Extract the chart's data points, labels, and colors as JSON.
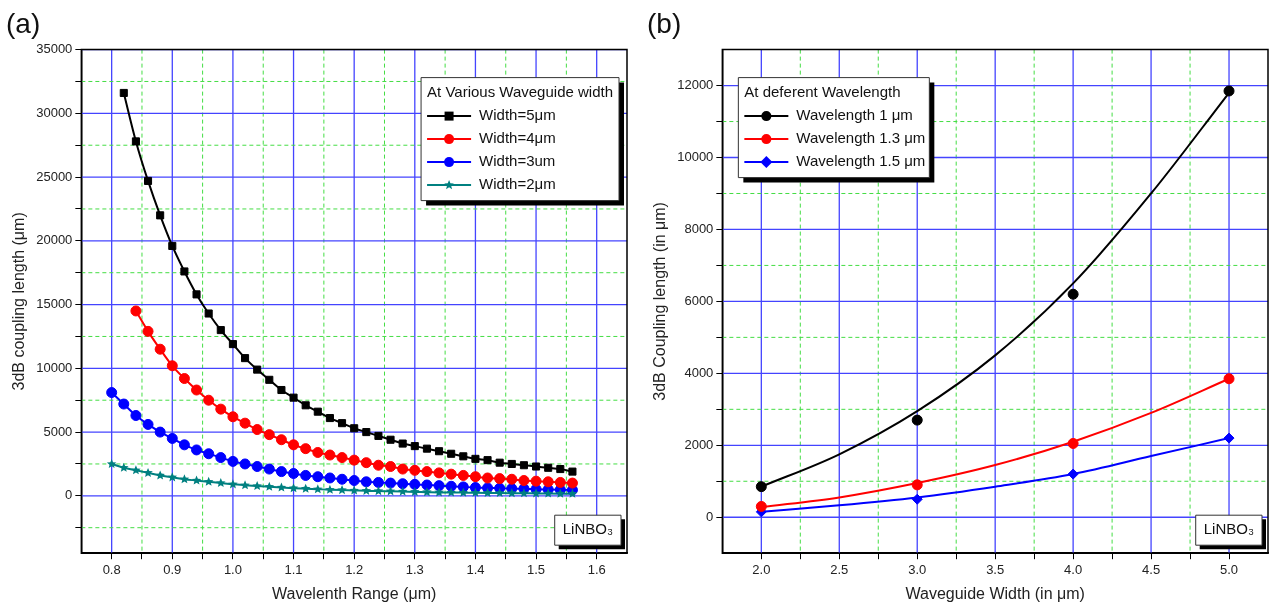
{
  "chart_data": [
    {
      "type": "line",
      "title": "(a)",
      "xlabel": "Wavelenth Range (μm)",
      "ylabel": "3dB coupling length (μm)",
      "legend_title": "At Various Waveguide width",
      "legend": "top right",
      "grid": true,
      "xlim": [
        0.75,
        1.65
      ],
      "xticks": [
        0.8,
        {
          "value": 0.85,
          "label": null
        },
        0.9,
        {
          "value": 0.95,
          "label": null
        },
        {
          "value": 1,
          "label": "1.0"
        },
        {
          "value": 1.05,
          "label": null
        },
        1.1,
        {
          "value": 1.15,
          "label": null
        },
        1.2,
        {
          "value": 1.25,
          "label": null
        },
        1.3,
        {
          "value": 1.35,
          "label": null
        },
        1.4,
        {
          "value": 1.45,
          "label": null
        },
        1.5,
        {
          "value": 1.55,
          "label": null
        },
        1.6
      ],
      "ylim": [
        -4500,
        35000
      ],
      "yticks": [
        {
          "value": -2500,
          "label": null
        },
        0,
        {
          "value": 2500,
          "label": null
        },
        5000,
        {
          "value": 7500,
          "label": null
        },
        10000,
        {
          "value": 12500,
          "label": null
        },
        15000,
        {
          "value": 17500,
          "label": null
        },
        20000,
        {
          "value": 22500,
          "label": null
        },
        25000,
        {
          "value": 27500,
          "label": null
        },
        30000,
        {
          "value": 32500,
          "label": null
        },
        35000
      ],
      "annotations": [
        "LiNBO₃"
      ],
      "series": [
        {
          "name": "Width=5μm",
          "color": "#000000",
          "marker": "square",
          "x": [
            0.82,
            0.84,
            0.86,
            0.88,
            0.9,
            0.92,
            0.94,
            0.96,
            0.98,
            1.0,
            1.02,
            1.04,
            1.06,
            1.08,
            1.1,
            1.12,
            1.14,
            1.16,
            1.18,
            1.2,
            1.22,
            1.24,
            1.26,
            1.28,
            1.3,
            1.32,
            1.34,
            1.36,
            1.38,
            1.4,
            1.42,
            1.44,
            1.46,
            1.48,
            1.5,
            1.52,
            1.54,
            1.56
          ],
          "values": [
            31600,
            27800,
            24700,
            22000,
            19600,
            17600,
            15800,
            14300,
            13000,
            11900,
            10800,
            9900,
            9100,
            8300,
            7700,
            7100,
            6600,
            6100,
            5700,
            5300,
            5000,
            4700,
            4400,
            4100,
            3900,
            3700,
            3500,
            3300,
            3100,
            2900,
            2800,
            2600,
            2500,
            2400,
            2300,
            2200,
            2100,
            1900
          ]
        },
        {
          "name": "Width=4μm",
          "color": "#ff0000",
          "marker": "circle",
          "x": [
            0.84,
            0.86,
            0.88,
            0.9,
            0.92,
            0.94,
            0.96,
            0.98,
            1.0,
            1.02,
            1.04,
            1.06,
            1.08,
            1.1,
            1.12,
            1.14,
            1.16,
            1.18,
            1.2,
            1.22,
            1.24,
            1.26,
            1.28,
            1.3,
            1.32,
            1.34,
            1.36,
            1.38,
            1.4,
            1.42,
            1.44,
            1.46,
            1.48,
            1.5,
            1.52,
            1.54,
            1.56
          ],
          "values": [
            14500,
            12900,
            11500,
            10200,
            9200,
            8300,
            7500,
            6800,
            6200,
            5700,
            5200,
            4800,
            4400,
            4000,
            3700,
            3400,
            3200,
            3000,
            2800,
            2600,
            2400,
            2300,
            2100,
            2000,
            1900,
            1800,
            1700,
            1600,
            1500,
            1400,
            1350,
            1300,
            1200,
            1150,
            1100,
            1050,
            1000
          ]
        },
        {
          "name": "Width=3um",
          "color": "#0000ff",
          "marker": "circle",
          "x": [
            0.8,
            0.82,
            0.84,
            0.86,
            0.88,
            0.9,
            0.92,
            0.94,
            0.96,
            0.98,
            1.0,
            1.02,
            1.04,
            1.06,
            1.08,
            1.1,
            1.12,
            1.14,
            1.16,
            1.18,
            1.2,
            1.22,
            1.24,
            1.26,
            1.28,
            1.3,
            1.32,
            1.34,
            1.36,
            1.38,
            1.4,
            1.42,
            1.44,
            1.46,
            1.48,
            1.5,
            1.52,
            1.54,
            1.56
          ],
          "values": [
            8100,
            7200,
            6300,
            5600,
            5000,
            4500,
            4000,
            3600,
            3300,
            3000,
            2700,
            2500,
            2300,
            2100,
            1900,
            1750,
            1600,
            1500,
            1400,
            1300,
            1200,
            1100,
            1050,
            1000,
            950,
            900,
            850,
            800,
            750,
            700,
            650,
            620,
            600,
            570,
            550,
            520,
            500,
            480,
            460
          ]
        },
        {
          "name": "Width=2μm",
          "color": "#008080",
          "marker": "star",
          "x": [
            0.8,
            0.82,
            0.84,
            0.86,
            0.88,
            0.9,
            0.92,
            0.94,
            0.96,
            0.98,
            1.0,
            1.02,
            1.04,
            1.06,
            1.08,
            1.1,
            1.12,
            1.14,
            1.16,
            1.18,
            1.2,
            1.22,
            1.24,
            1.26,
            1.28,
            1.3,
            1.32,
            1.34,
            1.36,
            1.38,
            1.4,
            1.42,
            1.44,
            1.46,
            1.48,
            1.5,
            1.52,
            1.54,
            1.56
          ],
          "values": [
            2500,
            2200,
            2000,
            1800,
            1600,
            1450,
            1300,
            1200,
            1100,
            1000,
            900,
            830,
            770,
            710,
            650,
            600,
            560,
            520,
            480,
            450,
            420,
            390,
            370,
            350,
            330,
            310,
            290,
            270,
            260,
            250,
            240,
            230,
            220,
            210,
            200,
            190,
            180,
            170,
            160
          ]
        }
      ]
    },
    {
      "type": "scatter",
      "title": "(b)",
      "xlabel": "Waveguide Width (in μm)",
      "ylabel": "3dB Coupling length (in μm)",
      "legend_title": "At deferent Wavelength",
      "legend": "top left",
      "grid": true,
      "xlim": [
        1.75,
        5.25
      ],
      "xticks": [
        {
          "value": 2,
          "label": "2.0"
        },
        {
          "value": 2.25,
          "label": null
        },
        2.5,
        {
          "value": 2.75,
          "label": null
        },
        {
          "value": 3,
          "label": "3.0"
        },
        {
          "value": 3.25,
          "label": null
        },
        3.5,
        {
          "value": 3.75,
          "label": null
        },
        {
          "value": 4,
          "label": "4.0"
        },
        {
          "value": 4.25,
          "label": null
        },
        4.5,
        {
          "value": 4.75,
          "label": null
        },
        {
          "value": 5,
          "label": "5.0"
        }
      ],
      "ylim": [
        -1000,
        13000
      ],
      "yticks": [
        0,
        {
          "value": 1000,
          "label": null
        },
        2000,
        {
          "value": 3000,
          "label": null
        },
        4000,
        {
          "value": 5000,
          "label": null
        },
        6000,
        {
          "value": 7000,
          "label": null
        },
        8000,
        {
          "value": 9000,
          "label": null
        },
        10000,
        {
          "value": 11000,
          "label": null
        },
        12000
      ],
      "annotations": [
        "LiNBO₃"
      ],
      "series": [
        {
          "name": "Wavelength 1 μm",
          "color": "#000000",
          "marker": "circle",
          "x": [
            2,
            3,
            4,
            5
          ],
          "values": [
            850,
            2700,
            6200,
            11850
          ]
        },
        {
          "name": "Wavelength 1.3 μm",
          "color": "#ff0000",
          "marker": "circle",
          "x": [
            2,
            3,
            4,
            5
          ],
          "values": [
            300,
            900,
            2050,
            3850
          ]
        },
        {
          "name": "Wavelength 1.5 μm",
          "color": "#0000ff",
          "marker": "diamond",
          "x": [
            2,
            3,
            4,
            5
          ],
          "values": [
            150,
            500,
            1200,
            2200
          ]
        },
        {
          "type": "line",
          "color": "#000000",
          "marker": "none",
          "x": [
            2,
            2.5,
            3,
            3.5,
            4,
            4.5,
            5
          ],
          "values": [
            850,
            1750,
            2950,
            4500,
            6500,
            9000,
            11800
          ]
        },
        {
          "type": "line",
          "color": "#ff0000",
          "marker": "none",
          "x": [
            2,
            2.5,
            3,
            3.5,
            4,
            4.5,
            5
          ],
          "values": [
            280,
            550,
            950,
            1450,
            2100,
            2900,
            3850
          ]
        },
        {
          "type": "line",
          "color": "#0000ff",
          "marker": "none",
          "x": [
            2,
            2.5,
            3,
            3.5,
            4,
            4.5,
            5
          ],
          "values": [
            150,
            330,
            550,
            850,
            1200,
            1700,
            2200
          ]
        }
      ]
    }
  ]
}
